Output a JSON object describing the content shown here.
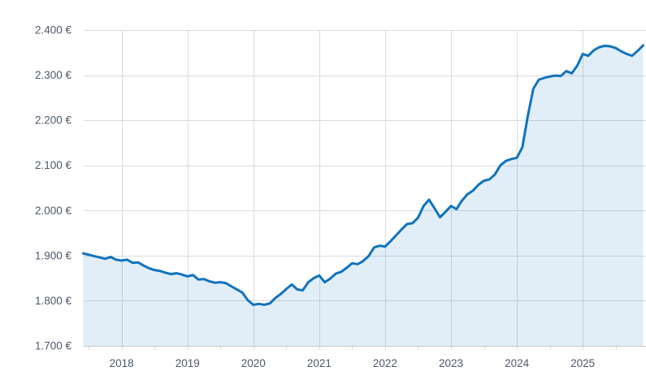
{
  "chart_data": {
    "type": "area",
    "title": "",
    "legend": "none",
    "grid": true,
    "x_axis": {
      "tick_labels": [
        "2018",
        "2019",
        "2020",
        "2021",
        "2022",
        "2023",
        "2024",
        "2025"
      ],
      "tick_years": [
        2018,
        2019,
        2020,
        2021,
        2022,
        2023,
        2024,
        2025
      ],
      "minor_tick_interval_years": 0.5,
      "minor_tick_start_year": 2017.5,
      "minor_tick_end_year": 2025.5,
      "range_years": [
        2017.4,
        2025.96
      ]
    },
    "y_axis": {
      "unit": "€",
      "range": [
        1700,
        2400
      ],
      "ticks": [
        {
          "value": 2400,
          "label": "2.400 €"
        },
        {
          "value": 2300,
          "label": "2.300 €"
        },
        {
          "value": 2200,
          "label": "2.200 €"
        },
        {
          "value": 2100,
          "label": "2.100 €"
        },
        {
          "value": 2000,
          "label": "2.000 €"
        },
        {
          "value": 1900,
          "label": "1.900 €"
        },
        {
          "value": 1800,
          "label": "1.800 €"
        },
        {
          "value": 1700,
          "label": "1.700 €"
        }
      ]
    },
    "series": [
      {
        "name": "price-eur",
        "x_start_year_fraction": 2017.4167,
        "x_step_years": 0.08333,
        "values": [
          1905,
          1902,
          1899,
          1896,
          1893,
          1897,
          1891,
          1889,
          1891,
          1884,
          1885,
          1878,
          1872,
          1868,
          1866,
          1862,
          1859,
          1861,
          1858,
          1854,
          1857,
          1847,
          1848,
          1843,
          1840,
          1841,
          1839,
          1832,
          1825,
          1818,
          1801,
          1791,
          1793,
          1791,
          1794,
          1806,
          1815,
          1826,
          1836,
          1825,
          1823,
          1841,
          1850,
          1856,
          1841,
          1849,
          1860,
          1864,
          1873,
          1883,
          1881,
          1888,
          1899,
          1918,
          1922,
          1920,
          1932,
          1945,
          1958,
          1970,
          1972,
          1984,
          2010,
          2024,
          2005,
          1985,
          1997,
          2010,
          2003,
          2022,
          2036,
          2044,
          2057,
          2066,
          2069,
          2080,
          2100,
          2110,
          2114,
          2117,
          2140,
          2210,
          2270,
          2290,
          2294,
          2297,
          2299,
          2298,
          2309,
          2304,
          2321,
          2347,
          2343,
          2355,
          2362,
          2365,
          2364,
          2360,
          2353,
          2347,
          2343,
          2354,
          2366
        ]
      }
    ],
    "colors": {
      "line": "#1173bc",
      "fill": "rgba(17,115,188,0.12)",
      "grid": "#d9dbde",
      "axis_line": "#c3c6c9",
      "label": "#4e586a",
      "background": "#ffffff"
    }
  }
}
